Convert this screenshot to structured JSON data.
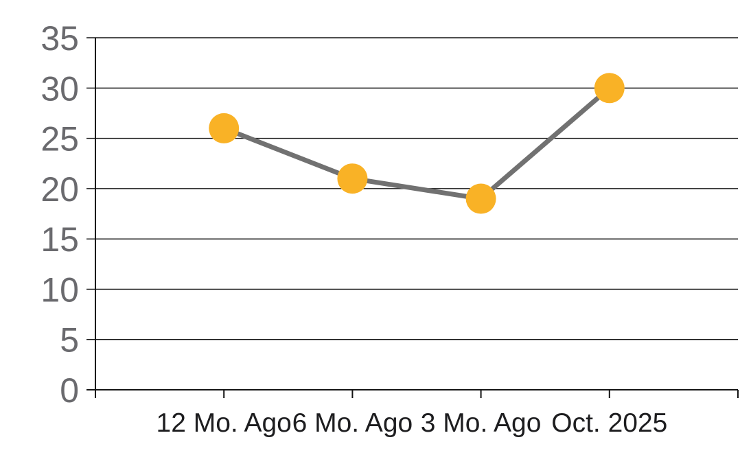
{
  "chart_data": {
    "type": "line",
    "categories": [
      "12 Mo. Ago",
      "6 Mo. Ago",
      "3 Mo. Ago",
      "Oct. 2025"
    ],
    "values": [
      26,
      21,
      19,
      30
    ],
    "ylim": [
      0,
      35
    ],
    "ytick_step": 5,
    "y_tick_labels": [
      "0",
      "5",
      "10",
      "15",
      "20",
      "25",
      "30",
      "35"
    ],
    "grid": "horizontal",
    "legend": "none",
    "colors": {
      "marker": "#F9B226",
      "line": "#717171",
      "grid": "#141414",
      "axis": "#141414",
      "y_tick_label": "#6A6A6E",
      "x_tick_label": "#1D1D1F",
      "background": "#FFFFFF"
    }
  }
}
